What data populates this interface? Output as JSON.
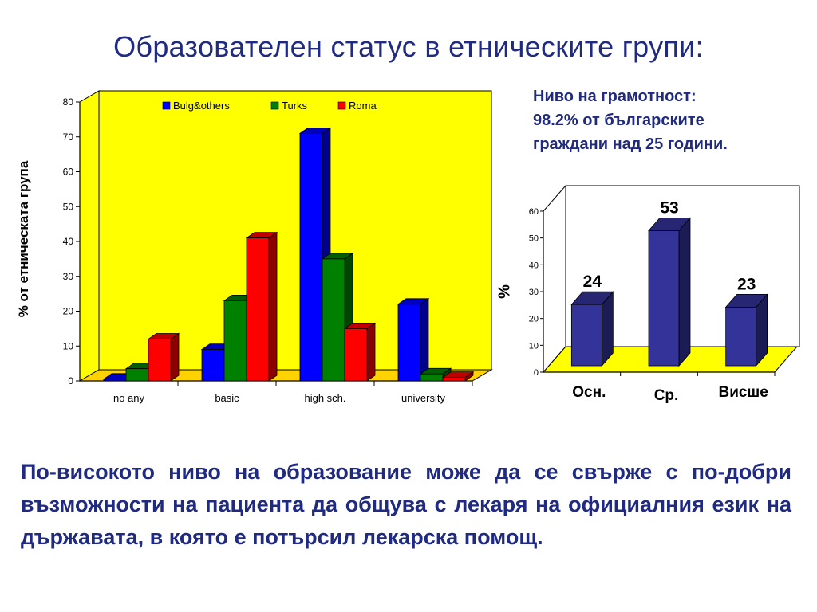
{
  "slide": {
    "title": "Образователен статус в етническите групи:",
    "literacy_lines": [
      "Ниво на грамотност:",
      "98.2% от българските",
      "граждани над 25 години."
    ],
    "conclusion": "По-високото ниво на образование може да се свърже с по-добри възможности на пациента да общува с лекаря на официалния език на държавата, в която е потърсил лекарска помощ."
  },
  "chart_data": [
    {
      "type": "bar",
      "title": "",
      "xlabel": "",
      "ylabel": "% от етническата група",
      "categories": [
        "no any",
        "basic",
        "high sch.",
        "university"
      ],
      "series": [
        {
          "name": "Bulg&others",
          "values": [
            0.5,
            9,
            71,
            22
          ],
          "color": "#0000ff"
        },
        {
          "name": "Turks",
          "values": [
            3.5,
            23,
            35,
            2
          ],
          "color": "#008000"
        },
        {
          "name": "Roma",
          "values": [
            12,
            41,
            15,
            1
          ],
          "color": "#ff0000"
        }
      ],
      "ylim": [
        0,
        80
      ],
      "yticks": [
        0,
        10,
        20,
        30,
        40,
        50,
        60,
        70,
        80
      ],
      "legend_position": "top",
      "grid": false,
      "background": "#ffff00"
    },
    {
      "type": "bar",
      "title": "",
      "xlabel": "",
      "ylabel": "%",
      "categories": [
        "Осн.",
        "Ср.",
        "Висше"
      ],
      "values": [
        24,
        53,
        23
      ],
      "data_labels": [
        "24",
        "53",
        "23"
      ],
      "ylim": [
        0,
        60
      ],
      "yticks": [
        0,
        10,
        20,
        30,
        40,
        50,
        60
      ],
      "grid": false,
      "color": "#333399",
      "floor_color": "#ffff00"
    }
  ]
}
